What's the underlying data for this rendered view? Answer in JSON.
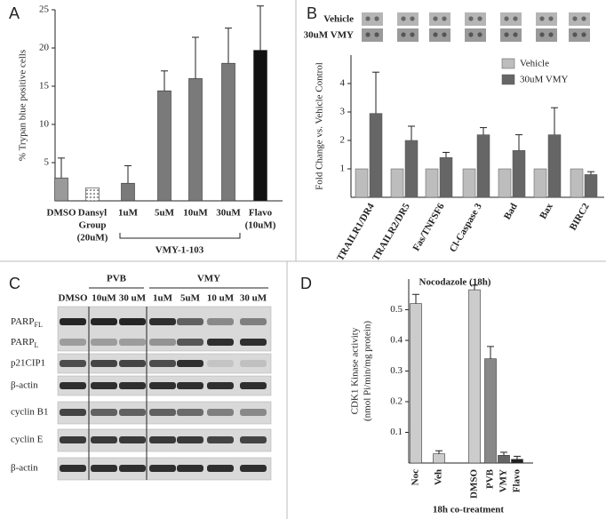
{
  "chart_data": [
    {
      "type": "bar",
      "panel": "A",
      "y_label": "% Trypan blue positive cells",
      "categories": [
        "DMSO",
        [
          "Dansyl",
          "Group",
          "(20uM)"
        ],
        "1uM",
        "5uM",
        "10uM",
        "30uM",
        [
          "Flavo",
          "(10uM)"
        ]
      ],
      "group_label": "VMY-1-103",
      "values": [
        3.0,
        1.7,
        2.3,
        14.4,
        16.0,
        18.0,
        19.7
      ],
      "errors": [
        2.6,
        null,
        2.3,
        2.6,
        5.4,
        4.6,
        5.8
      ],
      "colors": [
        "#9a9a9a",
        "#ffffff",
        "#7a7a7a",
        "#7a7a7a",
        "#7a7a7a",
        "#7a7a7a",
        "#111111"
      ],
      "patterns": [
        "solid",
        "dots",
        "solid",
        "solid",
        "solid",
        "solid",
        "solid"
      ],
      "ylim": [
        0,
        25
      ],
      "yticks": [
        5,
        10,
        15,
        20,
        25
      ]
    },
    {
      "type": "bar",
      "panel": "B",
      "y_label": "Fold Change vs. Vehicle Control",
      "blot_labels": [
        "Vehicle",
        "30uM VMY"
      ],
      "categories": [
        "TRAILR1/DR4",
        "TRAILR2/DR5",
        "Fas/TNFSF6",
        "Cl-Caspase 3",
        "Bad",
        "Bax",
        "BIRC2"
      ],
      "series": [
        {
          "name": "Vehicle",
          "color": "#bdbdbd",
          "values": [
            1,
            1,
            1,
            1,
            1,
            1,
            1
          ]
        },
        {
          "name": "30uM VMY",
          "color": "#666666",
          "values": [
            2.95,
            2.0,
            1.4,
            2.2,
            1.65,
            2.2,
            0.8
          ],
          "errors": [
            1.45,
            0.5,
            0.18,
            0.25,
            0.55,
            0.95,
            0.1
          ]
        }
      ],
      "ylim": [
        0,
        5
      ],
      "yticks": [
        1,
        2,
        3,
        4
      ],
      "legend": "upper right"
    },
    {
      "type": "bar",
      "panel": "D",
      "title": "Nocodazole (18h)",
      "y_label": [
        "CDK1 Kinase activity",
        "(nmol Pi/min/mg protein)"
      ],
      "x_label": "18h co-treatment",
      "categories": [
        "Noc",
        "Veh",
        "DMSO",
        "PVB",
        "VMY",
        "Flavo"
      ],
      "values": [
        0.52,
        0.03,
        0.565,
        0.34,
        0.025,
        0.012
      ],
      "errors": [
        0.03,
        0.01,
        0.015,
        0.04,
        0.01,
        0.01
      ],
      "colors": [
        "#cccccc",
        "#cccccc",
        "#cccccc",
        "#888888",
        "#666666",
        "#222222"
      ],
      "patterns": [
        "solid",
        "solid",
        "solid",
        "solid",
        "solid",
        "solid"
      ],
      "ylim": [
        0,
        0.6
      ],
      "yticks": [
        0.1,
        0.2,
        0.3,
        0.4,
        0.5
      ]
    }
  ],
  "blot": {
    "panel": "C",
    "groups": [
      "PVB",
      "VMY"
    ],
    "lanes": [
      "DMSO",
      "10uM",
      "30 uM",
      "1uM",
      "5uM",
      "10 uM",
      "30 uM"
    ],
    "rows": [
      {
        "text": "PARP",
        "sub": "FL"
      },
      {
        "text": "PARP",
        "sub": "L"
      },
      "p21CIP1",
      "β-actin",
      "cyclin B1",
      "cyclin E",
      "β-actin"
    ]
  }
}
